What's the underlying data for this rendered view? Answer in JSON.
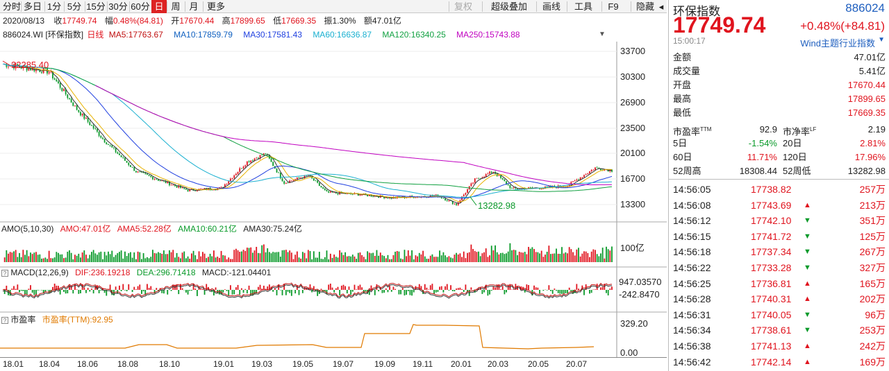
{
  "toolbar": {
    "left_items": [
      "分时",
      "多日",
      "1分",
      "5分",
      "15分",
      "30分",
      "60分",
      "日",
      "周",
      "月",
      "更多"
    ],
    "active": "日",
    "right_items": [
      "复权",
      "超级叠加",
      "画线",
      "工具",
      "F9",
      "隐藏"
    ],
    "collapse_icon": "chevron-left-icon"
  },
  "info": {
    "date": "2020/08/13",
    "close_label": "收",
    "close": "17749.74",
    "change_label": "幅",
    "change": "0.48%(84.81)",
    "open_label": "开",
    "open": "17670.44",
    "high_label": "高",
    "high": "17899.65",
    "low_label": "低",
    "low": "17669.35",
    "amplitude_label": "振",
    "amplitude": "1.30%",
    "amount_label": "额",
    "amount": "47.01亿"
  },
  "ma_bar": {
    "code_name": "886024.WI [环保指数]",
    "period": "日线",
    "ma5": "MA5:17763.67",
    "ma10": "MA10:17859.79",
    "ma30": "MA30:17581.43",
    "ma60": "MA60:16636.87",
    "ma120": "MA120:16340.25",
    "ma250": "MA250:15743.88",
    "menu_icon": "triangle-down-icon"
  },
  "main_chart": {
    "y_ticks": [
      "33700",
      "30300",
      "26900",
      "23500",
      "20100",
      "16700",
      "13300"
    ],
    "max_label": "32285.40",
    "min_label": "13282.98",
    "colors": {
      "ma5": "#333333",
      "ma10": "#e8b200",
      "ma30": "#2040e0",
      "ma60": "#1ab0d0",
      "ma120": "#10a040",
      "ma250": "#c000c0",
      "up": "#e0141e",
      "down": "#0a9a2a"
    }
  },
  "amo": {
    "title": "AMO(5,10,30)",
    "amo": "AMO:47.01亿",
    "ama5": "AMA5:52.28亿",
    "ama10": "AMA10:60.21亿",
    "ama30": "AMA30:75.24亿",
    "y_tick": "100亿"
  },
  "macd": {
    "marker": "?",
    "title": "MACD(12,26,9)",
    "dif": "DIF:236.19218",
    "dea": "DEA:296.71418",
    "macd": "MACD:-121.04401",
    "y_ticks": [
      "947.03570",
      "-242.8470"
    ]
  },
  "pe": {
    "marker": "?",
    "title": "市盈率",
    "value": "市盈率(TTM):92.95",
    "y_ticks": [
      "329.20",
      "0.00"
    ]
  },
  "x_axis": [
    "18.01",
    "18.04",
    "18.06",
    "18.08",
    "18.10",
    "19.01",
    "19.03",
    "19.05",
    "19.07",
    "19.09",
    "19.11",
    "20.01",
    "20.03",
    "20.05",
    "20.07"
  ],
  "quote": {
    "name": "环保指数",
    "code": "886024",
    "price": "17749.74",
    "change": "+0.48%(+84.81)",
    "time": "15:00:17",
    "source_link": "Wind主题行业指数",
    "stats": [
      {
        "k": "金额",
        "v": "47.01亿"
      },
      {
        "k": "成交量",
        "v": "5.41亿"
      },
      {
        "k": "开盘",
        "v": "17670.44"
      },
      {
        "k": "最高",
        "v": "17899.65"
      },
      {
        "k": "最低",
        "v": "17669.35"
      }
    ],
    "pe_row": {
      "k1": "市盈率",
      "s1": "TTM",
      "v1": "92.9",
      "k2": "市净率",
      "s2": "LF",
      "v2": "2.19"
    },
    "periods": [
      {
        "k1": "5日",
        "v1": "-1.54%",
        "k2": "20日",
        "v2": "2.81%"
      },
      {
        "k1": "60日",
        "v1": "11.71%",
        "k2": "120日",
        "v2": "17.96%"
      },
      {
        "k1": "52周高",
        "v1": "18308.44",
        "k2": "52周低",
        "v2": "13282.98"
      }
    ],
    "ticks": [
      {
        "t": "14:56:05",
        "p": "17738.82",
        "d": "",
        "v": "257万"
      },
      {
        "t": "14:56:08",
        "p": "17743.69",
        "d": "up",
        "v": "213万"
      },
      {
        "t": "14:56:12",
        "p": "17742.10",
        "d": "down",
        "v": "351万"
      },
      {
        "t": "14:56:15",
        "p": "17741.72",
        "d": "down",
        "v": "125万"
      },
      {
        "t": "14:56:18",
        "p": "17737.34",
        "d": "down",
        "v": "267万"
      },
      {
        "t": "14:56:22",
        "p": "17733.28",
        "d": "down",
        "v": "327万"
      },
      {
        "t": "14:56:25",
        "p": "17736.81",
        "d": "up",
        "v": "165万"
      },
      {
        "t": "14:56:28",
        "p": "17740.31",
        "d": "up",
        "v": "202万"
      },
      {
        "t": "14:56:31",
        "p": "17740.05",
        "d": "down",
        "v": "96万"
      },
      {
        "t": "14:56:34",
        "p": "17738.61",
        "d": "down",
        "v": "253万"
      },
      {
        "t": "14:56:38",
        "p": "17741.13",
        "d": "up",
        "v": "242万"
      },
      {
        "t": "14:56:42",
        "p": "17742.14",
        "d": "up",
        "v": "169万"
      }
    ]
  }
}
